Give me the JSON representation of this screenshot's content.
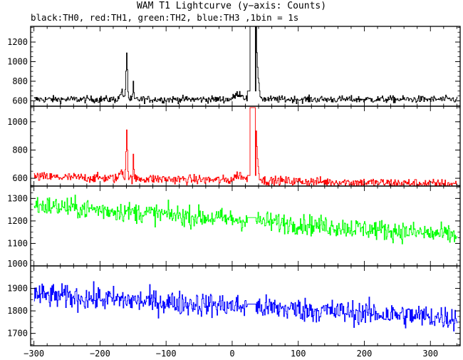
{
  "title": "WAM T1 Lightcurve (y−axis: Counts)",
  "subtitle": "black:TH0, red:TH1, green:TH2, blue:TH3 ,1bin = 1s",
  "chart_data": {
    "type": "line",
    "x_ticks": [
      -300,
      -200,
      -100,
      0,
      100,
      200,
      300
    ],
    "xlim": [
      -305,
      345
    ],
    "panels": [
      {
        "series": "TH0",
        "color": "#000000",
        "ylim": [
          545,
          1360
        ],
        "y_ticks": [
          600,
          800,
          1000,
          1200
        ],
        "base": 615,
        "noise": 30,
        "trend": 0,
        "gap": [
          23,
          36
        ],
        "gap_level": 700,
        "peaks": [
          [
            -160,
            480,
            1.5
          ],
          [
            -150,
            180,
            0.8
          ],
          [
            -168,
            80,
            3
          ]
        ],
        "saturated": [
          [
            27,
            35,
            1360
          ]
        ],
        "decay": [
          36,
          770,
          2.2
        ],
        "bumps": [
          [
            10,
            60,
            8
          ]
        ]
      },
      {
        "series": "TH1",
        "color": "#ff0000",
        "ylim": [
          545,
          1110
        ],
        "y_ticks": [
          600,
          800,
          1000
        ],
        "base": 610,
        "noise": 28,
        "trend": -0.08,
        "gap": [
          23,
          36
        ],
        "gap_level": 620,
        "peaks": [
          [
            -160,
            340,
            1.5
          ],
          [
            -150,
            160,
            0.8
          ],
          [
            -168,
            60,
            3
          ]
        ],
        "saturated": [
          [
            27,
            35,
            1100
          ]
        ],
        "decay": [
          36,
          380,
          2.2
        ],
        "bumps": [
          [
            10,
            40,
            8
          ]
        ]
      },
      {
        "series": "TH2",
        "color": "#00ff00",
        "ylim": [
          1000,
          1355
        ],
        "y_ticks": [
          1000,
          1100,
          1200,
          1300
        ],
        "base": 1270,
        "noise": 38,
        "trend": -0.21,
        "gap": [
          23,
          36
        ],
        "gap_level": 1215,
        "peaks": [],
        "saturated": [],
        "decay": null,
        "bumps": []
      },
      {
        "series": "TH3",
        "color": "#0000ff",
        "ylim": [
          1645,
          2000
        ],
        "y_ticks": [
          1700,
          1800,
          1900
        ],
        "base": 1870,
        "noise": 45,
        "trend": -0.16,
        "gap": [
          23,
          36
        ],
        "gap_level": 1830,
        "peaks": [],
        "saturated": [],
        "decay": null,
        "bumps": []
      }
    ]
  }
}
